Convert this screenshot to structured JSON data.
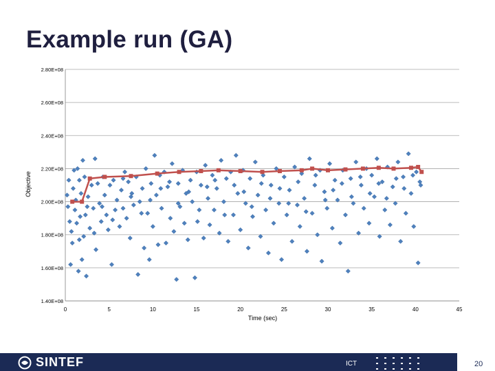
{
  "slide": {
    "title": "Example run (GA)",
    "department": "ICT",
    "page_number": "20",
    "logo_text": "SINTEF"
  },
  "colors": {
    "points": "#4f81bd",
    "line": "#c0504d",
    "footer": "#1b2a55",
    "title": "#1f1f3f",
    "grid": "#a6a6a6"
  },
  "chart_data": {
    "type": "scatter",
    "title": "",
    "xlabel": "Time (sec)",
    "ylabel": "Objective",
    "xlim": [
      0,
      45
    ],
    "ylim": [
      140000000,
      280000000
    ],
    "x_ticks": [
      0,
      5,
      10,
      15,
      20,
      25,
      30,
      35,
      40,
      45
    ],
    "y_ticks": [
      140000000,
      160000000,
      180000000,
      200000000,
      220000000,
      240000000,
      260000000,
      280000000
    ],
    "y_tick_labels": [
      "1.40E+08",
      "1.60E+08",
      "1.80E+08",
      "2.00E+08",
      "2.20E+08",
      "2.40E+08",
      "2.60E+08",
      "2.80E+08"
    ],
    "grid": "horizontal",
    "legend": "none",
    "series": [
      {
        "type": "scatter",
        "marker": "diamond",
        "points": [
          [
            0.2,
            204000000
          ],
          [
            0.3,
            197000000
          ],
          [
            0.5,
            188000000
          ],
          [
            0.6,
            162000000
          ],
          [
            0.7,
            182000000
          ],
          [
            0.8,
            175000000
          ],
          [
            0.9,
            208000000
          ],
          [
            1.0,
            219000000
          ],
          [
            1.1,
            195000000
          ],
          [
            1.2,
            201000000
          ],
          [
            1.3,
            187000000
          ],
          [
            1.4,
            220000000
          ],
          [
            1.5,
            158000000
          ],
          [
            1.6,
            213000000
          ],
          [
            1.7,
            191000000
          ],
          [
            1.8,
            205000000
          ],
          [
            1.9,
            165000000
          ],
          [
            2.0,
            225000000
          ],
          [
            2.1,
            179000000
          ],
          [
            2.2,
            215000000
          ],
          [
            2.4,
            155000000
          ],
          [
            2.5,
            197000000
          ],
          [
            2.6,
            203000000
          ],
          [
            2.8,
            184000000
          ],
          [
            3.0,
            210000000
          ],
          [
            3.2,
            196000000
          ],
          [
            3.4,
            226000000
          ],
          [
            3.5,
            171000000
          ],
          [
            3.7,
            211000000
          ],
          [
            3.9,
            199000000
          ],
          [
            4.1,
            188000000
          ],
          [
            4.3,
            215000000
          ],
          [
            4.5,
            204000000
          ],
          [
            4.7,
            192000000
          ],
          [
            4.9,
            183000000
          ],
          [
            5.1,
            210000000
          ],
          [
            5.3,
            162000000
          ],
          [
            5.5,
            213000000
          ],
          [
            5.7,
            195000000
          ],
          [
            5.9,
            201000000
          ],
          [
            6.2,
            185000000
          ],
          [
            6.4,
            207000000
          ],
          [
            6.6,
            196000000
          ],
          [
            6.8,
            218000000
          ],
          [
            7.0,
            190000000
          ],
          [
            7.2,
            212000000
          ],
          [
            7.4,
            178000000
          ],
          [
            7.6,
            205000000
          ],
          [
            7.8,
            198000000
          ],
          [
            8.1,
            215000000
          ],
          [
            8.3,
            156000000
          ],
          [
            8.5,
            200000000
          ],
          [
            8.8,
            208000000
          ],
          [
            9.0,
            172000000
          ],
          [
            9.2,
            220000000
          ],
          [
            9.4,
            193000000
          ],
          [
            9.6,
            165000000
          ],
          [
            9.8,
            211000000
          ],
          [
            10.0,
            185000000
          ],
          [
            10.2,
            228000000
          ],
          [
            10.4,
            204000000
          ],
          [
            10.6,
            174000000
          ],
          [
            10.8,
            216000000
          ],
          [
            11.0,
            196000000
          ],
          [
            11.3,
            218000000
          ],
          [
            11.5,
            175000000
          ],
          [
            11.7,
            209000000
          ],
          [
            12.0,
            190000000
          ],
          [
            12.2,
            223000000
          ],
          [
            12.4,
            182000000
          ],
          [
            12.7,
            153000000
          ],
          [
            12.9,
            211000000
          ],
          [
            13.1,
            197000000
          ],
          [
            13.4,
            219000000
          ],
          [
            13.6,
            187000000
          ],
          [
            13.8,
            205000000
          ],
          [
            14.0,
            177000000
          ],
          [
            14.3,
            213000000
          ],
          [
            14.5,
            200000000
          ],
          [
            14.8,
            154000000
          ],
          [
            15.0,
            218000000
          ],
          [
            15.3,
            195000000
          ],
          [
            15.5,
            210000000
          ],
          [
            15.8,
            178000000
          ],
          [
            16.0,
            222000000
          ],
          [
            16.3,
            202000000
          ],
          [
            16.5,
            186000000
          ],
          [
            16.8,
            216000000
          ],
          [
            17.0,
            195000000
          ],
          [
            17.3,
            208000000
          ],
          [
            17.6,
            181000000
          ],
          [
            17.8,
            225000000
          ],
          [
            18.1,
            200000000
          ],
          [
            18.4,
            214000000
          ],
          [
            18.6,
            176000000
          ],
          [
            18.9,
            218000000
          ],
          [
            19.2,
            192000000
          ],
          [
            19.5,
            228000000
          ],
          [
            19.7,
            205000000
          ],
          [
            20.0,
            183000000
          ],
          [
            20.3,
            219000000
          ],
          [
            20.6,
            199000000
          ],
          [
            20.9,
            172000000
          ],
          [
            21.1,
            214000000
          ],
          [
            21.4,
            191000000
          ],
          [
            21.7,
            224000000
          ],
          [
            22.0,
            204000000
          ],
          [
            22.3,
            179000000
          ],
          [
            22.6,
            216000000
          ],
          [
            22.9,
            195000000
          ],
          [
            23.2,
            169000000
          ],
          [
            23.5,
            210000000
          ],
          [
            23.8,
            187000000
          ],
          [
            24.1,
            220000000
          ],
          [
            24.4,
            199000000
          ],
          [
            24.7,
            165000000
          ],
          [
            25.0,
            215000000
          ],
          [
            25.3,
            192000000
          ],
          [
            25.6,
            207000000
          ],
          [
            25.9,
            176000000
          ],
          [
            26.2,
            221000000
          ],
          [
            26.5,
            198000000
          ],
          [
            26.8,
            185000000
          ],
          [
            27.0,
            217000000
          ],
          [
            27.3,
            202000000
          ],
          [
            27.6,
            170000000
          ],
          [
            27.9,
            226000000
          ],
          [
            28.2,
            193000000
          ],
          [
            28.5,
            210000000
          ],
          [
            28.8,
            180000000
          ],
          [
            29.1,
            219000000
          ],
          [
            29.3,
            164000000
          ],
          [
            29.6,
            206000000
          ],
          [
            29.9,
            196000000
          ],
          [
            30.2,
            223000000
          ],
          [
            30.5,
            184000000
          ],
          [
            30.8,
            213000000
          ],
          [
            31.1,
            201000000
          ],
          [
            31.4,
            175000000
          ],
          [
            31.7,
            219000000
          ],
          [
            32.0,
            192000000
          ],
          [
            32.3,
            158000000
          ],
          [
            32.6,
            214000000
          ],
          [
            32.9,
            199000000
          ],
          [
            33.2,
            224000000
          ],
          [
            33.5,
            181000000
          ],
          [
            33.8,
            210000000
          ],
          [
            34.1,
            196000000
          ],
          [
            34.4,
            220000000
          ],
          [
            34.7,
            187000000
          ],
          [
            35.0,
            216000000
          ],
          [
            35.3,
            203000000
          ],
          [
            35.6,
            226000000
          ],
          [
            35.9,
            179000000
          ],
          [
            36.2,
            212000000
          ],
          [
            36.5,
            195000000
          ],
          [
            36.8,
            221000000
          ],
          [
            37.1,
            186000000
          ],
          [
            37.4,
            209000000
          ],
          [
            37.7,
            199000000
          ],
          [
            38.0,
            224000000
          ],
          [
            38.3,
            176000000
          ],
          [
            38.6,
            215000000
          ],
          [
            38.9,
            193000000
          ],
          [
            39.2,
            229000000
          ],
          [
            39.5,
            205000000
          ],
          [
            39.8,
            185000000
          ],
          [
            40.1,
            218000000
          ],
          [
            40.3,
            163000000
          ],
          [
            40.5,
            212000000
          ],
          [
            0.4,
            213000000
          ],
          [
            1.6,
            177000000
          ],
          [
            2.3,
            192000000
          ],
          [
            3.3,
            181000000
          ],
          [
            4.2,
            197000000
          ],
          [
            5.4,
            189000000
          ],
          [
            6.6,
            214000000
          ],
          [
            7.5,
            203000000
          ],
          [
            8.7,
            193000000
          ],
          [
            9.7,
            201000000
          ],
          [
            10.9,
            208000000
          ],
          [
            11.9,
            212000000
          ],
          [
            12.9,
            199000000
          ],
          [
            14.1,
            206000000
          ],
          [
            15.1,
            188000000
          ],
          [
            16.2,
            209000000
          ],
          [
            17.1,
            213000000
          ],
          [
            18.2,
            192000000
          ],
          [
            19.3,
            210000000
          ],
          [
            20.4,
            206000000
          ],
          [
            21.3,
            197000000
          ],
          [
            22.4,
            211000000
          ],
          [
            23.4,
            202000000
          ],
          [
            24.5,
            208000000
          ],
          [
            25.5,
            199000000
          ],
          [
            26.6,
            212000000
          ],
          [
            27.5,
            194000000
          ],
          [
            28.6,
            216000000
          ],
          [
            29.7,
            201000000
          ],
          [
            30.6,
            207000000
          ],
          [
            31.6,
            211000000
          ],
          [
            32.7,
            203000000
          ],
          [
            33.7,
            215000000
          ],
          [
            34.8,
            205000000
          ],
          [
            35.8,
            211000000
          ],
          [
            36.7,
            202000000
          ],
          [
            37.8,
            214000000
          ],
          [
            38.7,
            208000000
          ],
          [
            39.7,
            216000000
          ],
          [
            40.6,
            210000000
          ]
        ]
      },
      {
        "type": "line",
        "marker": "square",
        "points": [
          [
            0.8,
            200000000
          ],
          [
            1.9,
            200000000
          ],
          [
            2.8,
            214000000
          ],
          [
            4.5,
            215000000
          ],
          [
            7.5,
            215500000
          ],
          [
            10.5,
            217000000
          ],
          [
            13.0,
            218000000
          ],
          [
            15.5,
            218500000
          ],
          [
            17.5,
            219000000
          ],
          [
            20.0,
            218500000
          ],
          [
            22.5,
            218000000
          ],
          [
            24.5,
            218500000
          ],
          [
            27.0,
            219000000
          ],
          [
            28.2,
            220000000
          ],
          [
            30.0,
            219000000
          ],
          [
            32.0,
            219500000
          ],
          [
            34.0,
            220000000
          ],
          [
            35.8,
            220500000
          ],
          [
            37.5,
            220000000
          ],
          [
            39.5,
            220500000
          ],
          [
            40.3,
            221000000
          ],
          [
            40.7,
            218000000
          ]
        ]
      }
    ]
  }
}
